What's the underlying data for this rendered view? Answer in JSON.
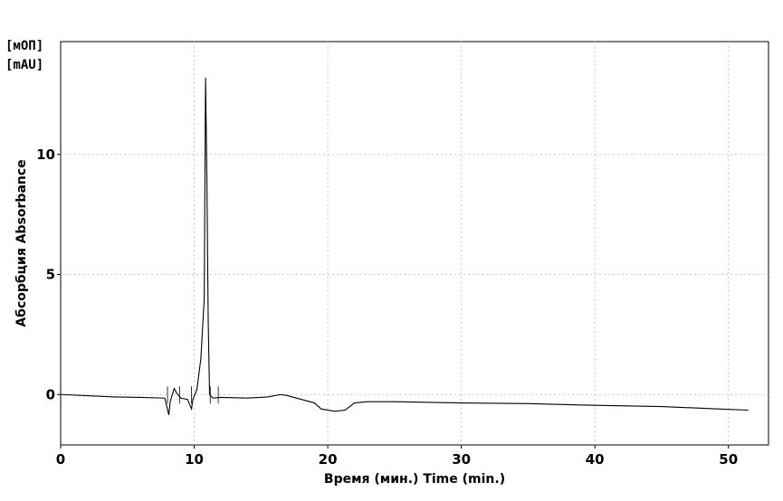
{
  "chart_data": {
    "type": "line",
    "xlabel": "Время (мин.) Time (min.)",
    "ylabel": "Абсорбция Absorbance",
    "y_units": [
      "[мОП]",
      "[mAU]"
    ],
    "xlim": [
      0,
      53
    ],
    "ylim": [
      -2.1,
      14.7
    ],
    "x_ticks": [
      0,
      10,
      20,
      30,
      40,
      50
    ],
    "y_ticks": [
      0,
      5,
      10
    ],
    "grid": true,
    "series": [
      {
        "values": [
          [
            0,
            0
          ],
          [
            2,
            -0.05
          ],
          [
            4,
            -0.1
          ],
          [
            6,
            -0.12
          ],
          [
            7.8,
            -0.15
          ],
          [
            8.1,
            -0.85
          ],
          [
            8.2,
            -0.3
          ],
          [
            8.5,
            0.25
          ],
          [
            8.7,
            0.05
          ],
          [
            9.0,
            -0.15
          ],
          [
            9.5,
            -0.2
          ],
          [
            9.8,
            -0.6
          ],
          [
            9.9,
            -0.2
          ],
          [
            10.2,
            0.2
          ],
          [
            10.5,
            1.5
          ],
          [
            10.75,
            4.0
          ],
          [
            10.85,
            13.2
          ],
          [
            10.95,
            9.0
          ],
          [
            11.05,
            3.0
          ],
          [
            11.15,
            0.0
          ],
          [
            11.4,
            -0.15
          ],
          [
            12,
            -0.12
          ],
          [
            14,
            -0.15
          ],
          [
            15.5,
            -0.1
          ],
          [
            16.5,
            0.0
          ],
          [
            17.0,
            -0.05
          ],
          [
            18.0,
            -0.2
          ],
          [
            19.0,
            -0.35
          ],
          [
            19.5,
            -0.6
          ],
          [
            20.5,
            -0.7
          ],
          [
            21.3,
            -0.65
          ],
          [
            22.0,
            -0.35
          ],
          [
            23,
            -0.3
          ],
          [
            25,
            -0.3
          ],
          [
            30,
            -0.35
          ],
          [
            35,
            -0.38
          ],
          [
            40,
            -0.45
          ],
          [
            45,
            -0.5
          ],
          [
            50,
            -0.62
          ],
          [
            51.5,
            -0.65
          ]
        ]
      }
    ],
    "peak_markers": [
      8.0,
      8.9,
      9.8,
      11.2,
      11.8
    ]
  }
}
